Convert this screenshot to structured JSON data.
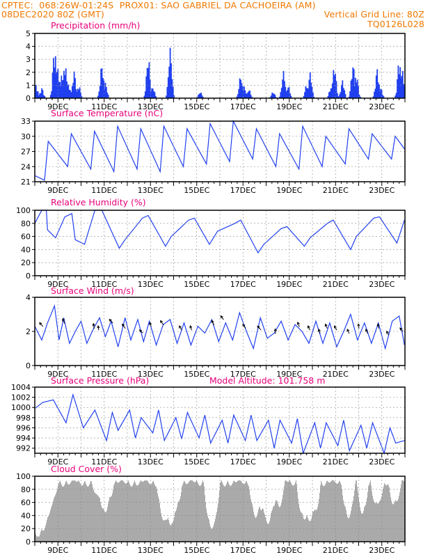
{
  "header": {
    "line1": "CPTEC:  068:26W-01:24S  PROX01: SAO GABRIEL DA CACHOEIRA (AM)",
    "line2_left": "08DEC2020 80Z (GMT)",
    "line2_right": "Vertical Grid Line: 80Z",
    "line3_right": "TQ0126L028"
  },
  "colors": {
    "header": "#f07800",
    "title": "#e8007a",
    "series": "#2040f0",
    "cloud": "#aaaaaa",
    "axis": "#000000",
    "grid": "#888888"
  },
  "x_labels": [
    "9DEC",
    "11DEC",
    "13DEC",
    "15DEC",
    "17DEC",
    "19DEC",
    "21DEC",
    "23DEC"
  ],
  "chart_data": [
    {
      "type": "bar",
      "title": "Precipitation  (mm/h)",
      "ylim": [
        0,
        5
      ],
      "yticks": [
        0,
        1,
        2,
        3,
        4,
        5
      ],
      "bursts": [
        [
          0.05,
          1.1
        ],
        [
          0.3,
          0.8
        ],
        [
          0.85,
          4.0
        ],
        [
          1.0,
          2.5
        ],
        [
          1.15,
          1.8
        ],
        [
          1.3,
          2.8
        ],
        [
          1.45,
          1.2
        ],
        [
          1.7,
          2.1
        ],
        [
          1.9,
          1.0
        ],
        [
          2.9,
          2.7
        ],
        [
          3.05,
          1.2
        ],
        [
          4.9,
          3.3
        ],
        [
          5.1,
          0.9
        ],
        [
          5.85,
          3.9
        ],
        [
          7.15,
          0.5
        ],
        [
          8.9,
          1.8
        ],
        [
          9.05,
          0.9
        ],
        [
          9.25,
          0.7
        ],
        [
          10.3,
          0.5
        ],
        [
          10.75,
          2.1
        ],
        [
          10.95,
          1.0
        ],
        [
          11.75,
          1.1
        ],
        [
          11.9,
          2.0
        ],
        [
          12.8,
          0.9
        ],
        [
          12.95,
          2.6
        ],
        [
          13.3,
          1.4
        ],
        [
          13.75,
          2.7
        ],
        [
          13.9,
          1.9
        ],
        [
          14.8,
          2.3
        ],
        [
          14.95,
          0.8
        ],
        [
          15.75,
          3.1
        ],
        [
          15.9,
          2.2
        ]
      ],
      "grid": true,
      "legend": "none"
    },
    {
      "type": "line",
      "title": "Surface Temperature  (nC)",
      "ylim": [
        21,
        33
      ],
      "yticks": [
        21,
        24,
        27,
        30,
        33
      ],
      "x": [
        0.0,
        0.42,
        0.58,
        1.42,
        1.58,
        2.42,
        2.58,
        3.42,
        3.58,
        4.42,
        4.58,
        5.42,
        5.58,
        6.42,
        6.58,
        7.42,
        7.58,
        8.42,
        8.58,
        9.42,
        9.58,
        10.42,
        10.58,
        11.42,
        11.58,
        12.42,
        12.58,
        13.42,
        13.58,
        14.42,
        14.58,
        15.42,
        15.58,
        15.98
      ],
      "values": [
        22.2,
        21.3,
        29.0,
        24.0,
        30.5,
        23.5,
        31.0,
        23.0,
        32.0,
        23.5,
        31.5,
        23.0,
        32.0,
        24.0,
        31.5,
        24.5,
        32.5,
        25.0,
        33.0,
        25.5,
        31.5,
        24.0,
        30.5,
        23.5,
        32.0,
        24.0,
        30.0,
        24.5,
        31.5,
        25.5,
        30.5,
        25.5,
        30.0,
        27.5
      ],
      "grid": true,
      "legend": "none"
    },
    {
      "type": "line",
      "title": "Relative Humidity  (%)",
      "ylim": [
        0,
        100
      ],
      "yticks": [
        0,
        20,
        40,
        60,
        80,
        100
      ],
      "x": [
        0.0,
        0.3,
        0.5,
        0.55,
        0.9,
        1.3,
        1.6,
        1.75,
        2.15,
        2.6,
        2.9,
        3.65,
        3.9,
        4.65,
        4.9,
        5.65,
        5.9,
        6.65,
        6.9,
        7.55,
        7.9,
        8.65,
        8.9,
        9.65,
        9.9,
        10.65,
        10.9,
        11.65,
        11.9,
        12.65,
        12.9,
        13.65,
        13.9,
        14.65,
        14.9,
        15.65,
        15.98
      ],
      "values": [
        80,
        100,
        100,
        70,
        58,
        90,
        95,
        55,
        48,
        100,
        100,
        42,
        55,
        88,
        92,
        45,
        60,
        85,
        88,
        48,
        68,
        80,
        85,
        35,
        48,
        72,
        75,
        45,
        58,
        80,
        85,
        40,
        60,
        88,
        90,
        50,
        85
      ],
      "grid": true,
      "legend": "none"
    },
    {
      "type": "line",
      "title": "Surface Wind  (m/s)",
      "ylim": [
        0,
        4
      ],
      "yticks": [
        0,
        2,
        4
      ],
      "x": [
        0.0,
        0.3,
        0.55,
        0.85,
        1.05,
        1.25,
        1.5,
        1.75,
        2.0,
        2.25,
        2.55,
        2.8,
        3.05,
        3.3,
        3.6,
        3.9,
        4.15,
        4.45,
        4.7,
        4.95,
        5.25,
        5.55,
        5.85,
        6.15,
        6.45,
        6.75,
        7.05,
        7.35,
        7.65,
        7.95,
        8.25,
        8.55,
        8.85,
        9.15,
        9.45,
        9.75,
        10.05,
        10.35,
        10.65,
        10.95,
        11.25,
        11.55,
        11.85,
        12.15,
        12.45,
        12.75,
        13.05,
        13.35,
        13.65,
        13.95,
        14.25,
        14.55,
        14.85,
        15.15,
        15.45,
        15.75,
        15.98
      ],
      "values": [
        2.3,
        1.5,
        2.5,
        3.5,
        1.5,
        2.8,
        1.3,
        2.0,
        2.6,
        1.3,
        2.2,
        2.8,
        1.7,
        2.6,
        1.1,
        2.8,
        1.5,
        2.7,
        1.4,
        2.6,
        1.2,
        2.4,
        2.7,
        1.3,
        2.5,
        1.2,
        2.3,
        1.9,
        2.7,
        1.4,
        2.5,
        1.5,
        3.1,
        2.0,
        1.0,
        2.8,
        1.6,
        1.9,
        2.6,
        1.5,
        2.4,
        2.0,
        1.3,
        2.6,
        1.3,
        2.5,
        1.1,
        2.0,
        3.0,
        1.5,
        2.5,
        1.3,
        2.5,
        1.0,
        2.6,
        2.9,
        1.2
      ],
      "arrows": [
        [
          0.28,
          2.4,
          2.3,
          0.9
        ],
        [
          1.25,
          2.6,
          2.0,
          1.0
        ],
        [
          2.55,
          2.3,
          1.7,
          1.0
        ],
        [
          2.75,
          2.2,
          1.7,
          0.6
        ],
        [
          3.3,
          2.6,
          2.3,
          0.9
        ],
        [
          3.85,
          2.3,
          2.2,
          1.0
        ],
        [
          4.6,
          2.0,
          2.4,
          0.6
        ],
        [
          5.0,
          2.4,
          1.9,
          0.6
        ],
        [
          5.5,
          2.5,
          2.2,
          1.0
        ],
        [
          6.3,
          2.2,
          2.1,
          0.8
        ],
        [
          6.75,
          2.2,
          1.9,
          0.7
        ],
        [
          7.7,
          2.5,
          2.0,
          1.0
        ],
        [
          8.1,
          2.8,
          2.2,
          0.7
        ],
        [
          9.05,
          2.3,
          2.2,
          0.7
        ],
        [
          9.7,
          2.2,
          2.3,
          0.9
        ],
        [
          10.4,
          2.0,
          1.6,
          0.8
        ],
        [
          11.4,
          2.4,
          1.9,
          0.8
        ],
        [
          11.85,
          2.2,
          2.0,
          0.7
        ],
        [
          12.3,
          2.0,
          1.9,
          0.7
        ],
        [
          12.6,
          2.3,
          2.0,
          0.7
        ],
        [
          13.0,
          2.2,
          2.1,
          0.8
        ],
        [
          13.55,
          2.0,
          2.0,
          0.7
        ],
        [
          14.0,
          2.3,
          1.7,
          0.7
        ],
        [
          14.35,
          2.0,
          2.0,
          0.7
        ],
        [
          14.85,
          2.3,
          1.8,
          0.7
        ],
        [
          15.25,
          1.9,
          2.0,
          0.6
        ],
        [
          15.85,
          2.1,
          2.3,
          0.6
        ]
      ],
      "grid": true,
      "legend": "none"
    },
    {
      "type": "line",
      "title": "Surface Pressure  (hPa)",
      "annotation": "Model Altitude: 101.758  m",
      "ylim": [
        991,
        1004
      ],
      "yticks": [
        992,
        994,
        996,
        998,
        1000,
        1002,
        1004
      ],
      "x": [
        0.0,
        0.35,
        0.8,
        1.35,
        1.65,
        2.1,
        2.6,
        3.1,
        3.35,
        3.6,
        4.1,
        4.35,
        4.6,
        5.1,
        5.35,
        5.6,
        6.1,
        6.35,
        6.6,
        7.1,
        7.35,
        7.6,
        8.1,
        8.35,
        8.6,
        9.1,
        9.35,
        9.6,
        10.1,
        10.35,
        10.6,
        11.1,
        11.35,
        11.6,
        12.1,
        12.35,
        12.6,
        13.1,
        13.35,
        13.6,
        14.1,
        14.35,
        14.6,
        15.1,
        15.35,
        15.6,
        15.98
      ],
      "values": [
        999.8,
        1001.0,
        1001.5,
        997.0,
        1002.5,
        996.0,
        999.5,
        993.5,
        999.0,
        995.5,
        999.5,
        994.0,
        998.0,
        995.0,
        999.5,
        993.5,
        998.0,
        993.8,
        999.0,
        994.0,
        998.5,
        993.0,
        997.5,
        993.0,
        998.5,
        993.5,
        998.5,
        993.5,
        997.5,
        992.0,
        997.5,
        993.0,
        997.8,
        991.0,
        997.0,
        992.0,
        997.0,
        992.5,
        997.5,
        991.5,
        996.5,
        992.0,
        997.0,
        991.0,
        996.0,
        993.0,
        993.5
      ],
      "grid": true,
      "legend": "none"
    },
    {
      "type": "area",
      "title": "Cloud Cover  (%)",
      "ylim": [
        0,
        100
      ],
      "yticks": [
        0,
        20,
        40,
        60,
        80,
        100
      ],
      "dips": [
        [
          0.0,
          1.0,
          80
        ],
        [
          2.8,
          0.35,
          25
        ],
        [
          3.1,
          0.3,
          30
        ],
        [
          5.65,
          0.4,
          60
        ],
        [
          6.05,
          0.3,
          40
        ],
        [
          7.65,
          0.35,
          70
        ],
        [
          9.55,
          0.3,
          50
        ],
        [
          10.05,
          0.35,
          60
        ],
        [
          10.55,
          0.25,
          35
        ],
        [
          11.65,
          0.35,
          55
        ],
        [
          12.05,
          0.3,
          45
        ],
        [
          13.55,
          0.3,
          50
        ],
        [
          14.15,
          0.25,
          45
        ],
        [
          14.8,
          0.3,
          35
        ],
        [
          15.55,
          0.3,
          30
        ]
      ],
      "grid": true,
      "legend": "none"
    }
  ]
}
